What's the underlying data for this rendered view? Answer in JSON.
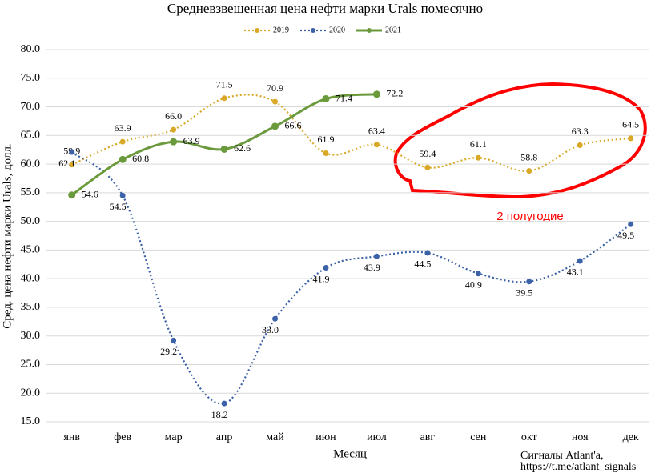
{
  "chart_data": {
    "type": "line",
    "title": "Средневзвешенная цена нефти марки Urals помесячно",
    "xlabel": "Месяц",
    "ylabel": "Сред. цена нефти марки Urals, долл.",
    "annotation": "2 полугодие",
    "footer": [
      "Сигналы Atlant'a,",
      "https://t.me/atlant_signals"
    ],
    "categories": [
      "янв",
      "фев",
      "мар",
      "апр",
      "май",
      "июн",
      "июл",
      "авг",
      "сен",
      "окт",
      "ноя",
      "дек"
    ],
    "series": [
      {
        "name": "2019",
        "color": "#d9a826",
        "line_style": "dotted",
        "values": [
          59.9,
          63.9,
          66.0,
          71.5,
          70.9,
          61.9,
          63.4,
          59.4,
          61.1,
          58.8,
          63.3,
          64.5
        ],
        "value_labels": [
          "59.9",
          "63.9",
          "66.0",
          "71.5",
          "70.9",
          "61.9",
          "63.4",
          "59.4",
          "61.1",
          "58.8",
          "63.3",
          "64.5"
        ]
      },
      {
        "name": "2020",
        "color": "#3b62a8",
        "line_style": "dotted",
        "values": [
          62.1,
          54.5,
          29.2,
          18.2,
          33.0,
          41.9,
          43.9,
          44.5,
          40.9,
          39.5,
          43.1,
          49.5
        ],
        "value_labels": [
          "62.1",
          "54.5",
          "29.2",
          "18.2",
          "33.0",
          "41.9",
          "43.9",
          "44.5",
          "40.9",
          "39.5",
          "43.1",
          "49.5"
        ]
      },
      {
        "name": "2021",
        "color": "#6b9a3c",
        "line_style": "solid",
        "values": [
          54.6,
          60.8,
          63.9,
          62.6,
          66.6,
          71.4,
          72.2,
          null,
          null,
          null,
          null,
          null
        ],
        "value_labels": [
          "54.6",
          "60.8",
          "63.9",
          "62.6",
          "66.6",
          "71.4",
          "72.2",
          null,
          null,
          null,
          null,
          null
        ]
      }
    ],
    "ylim": [
      15,
      80
    ],
    "yticks": [
      {
        "value": 15,
        "label": "15.0"
      },
      {
        "value": 20,
        "label": "20.0"
      },
      {
        "value": 25,
        "label": "25.0"
      },
      {
        "value": 30,
        "label": "30.0"
      },
      {
        "value": 35,
        "label": "35.0"
      },
      {
        "value": 40,
        "label": "40.0"
      },
      {
        "value": 45,
        "label": "45.0"
      },
      {
        "value": 50,
        "label": "50.0"
      },
      {
        "value": 55,
        "label": "55.0"
      },
      {
        "value": 60,
        "label": "60.0"
      },
      {
        "value": 65,
        "label": "65.0"
      },
      {
        "value": 70,
        "label": "70.0"
      },
      {
        "value": 75,
        "label": "75.0"
      },
      {
        "value": 80,
        "label": "80.0"
      }
    ],
    "grid": true,
    "legend": "top"
  }
}
